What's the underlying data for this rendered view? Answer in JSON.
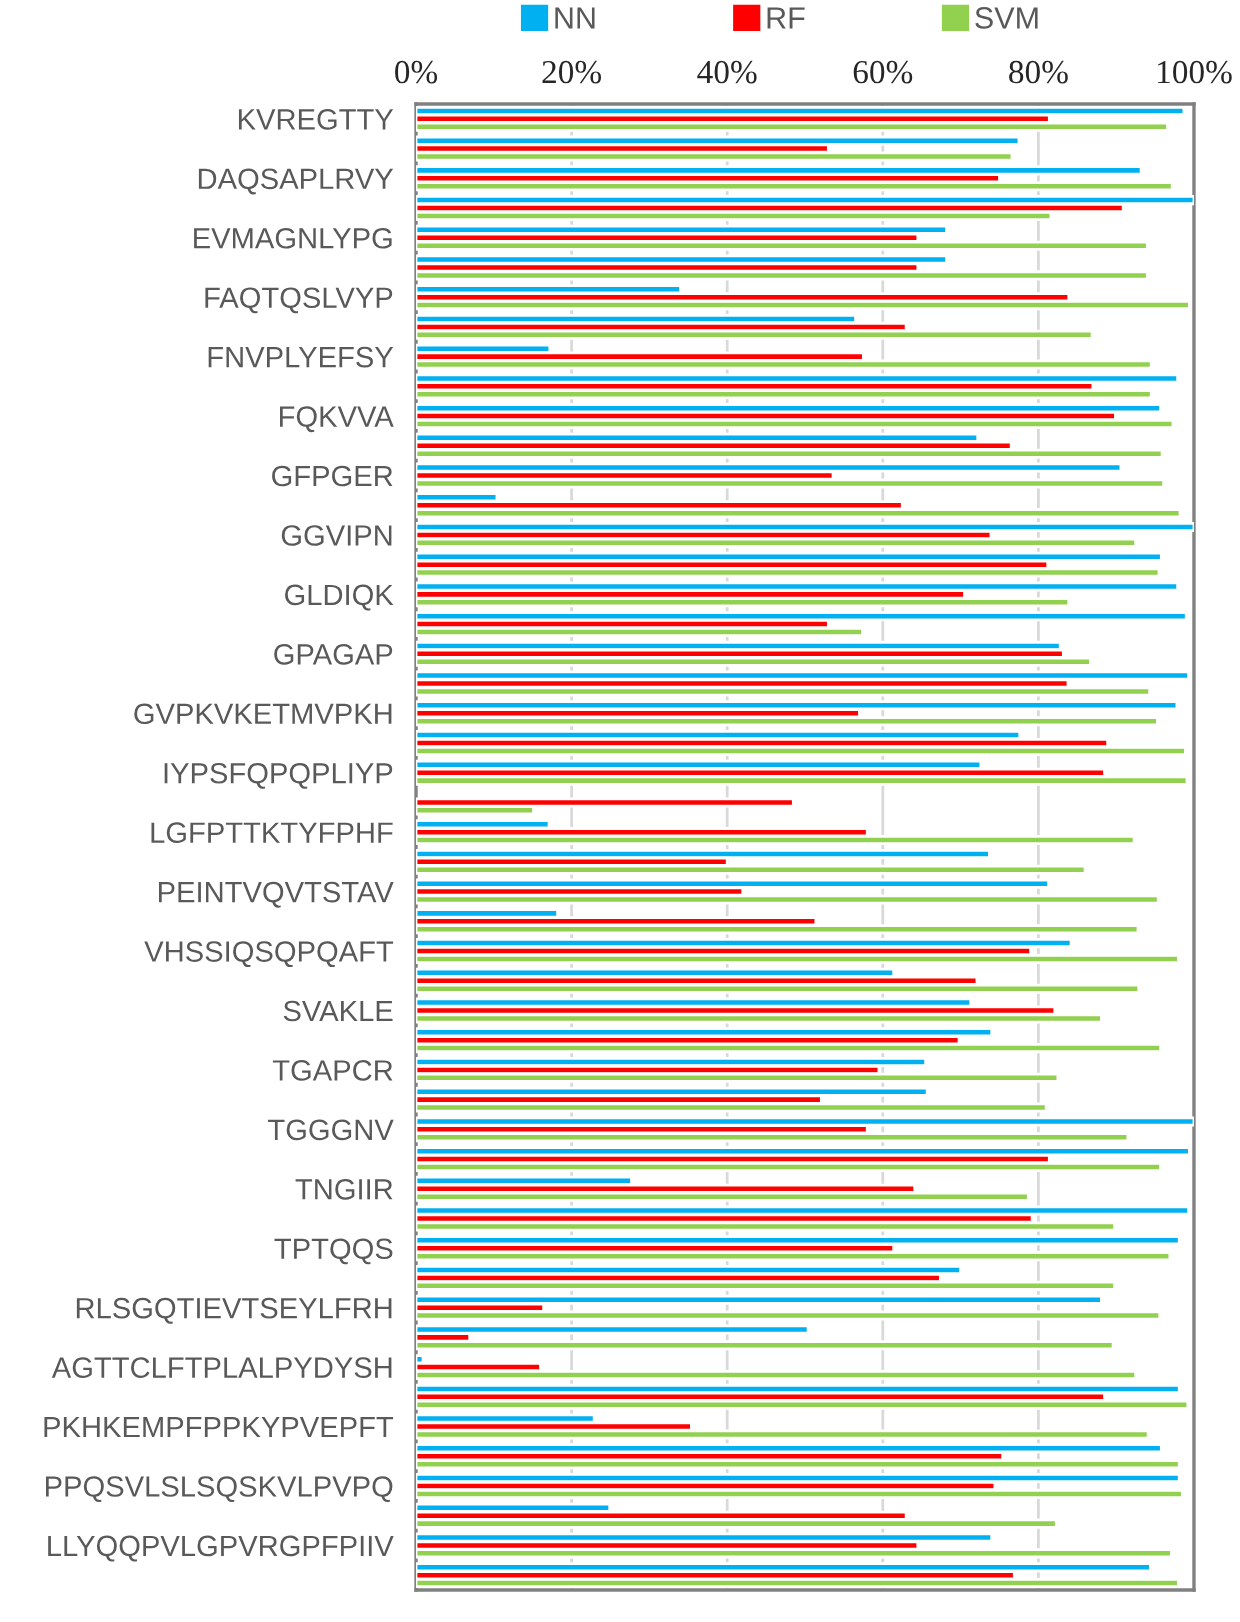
{
  "chart_data": {
    "type": "bar",
    "orientation": "horizontal",
    "categories": [
      "KVREGTTY",
      null,
      "DAQSAPLRVY",
      null,
      "EVMAGNLYPG",
      null,
      "FAQTQSLVYP",
      null,
      "FNVPLYEFSY",
      null,
      "FQKVVA",
      null,
      "GFPGER",
      null,
      "GGVIPN",
      null,
      "GLDIQK",
      null,
      "GPAGAP",
      null,
      "GVPKVKETMVPKH",
      null,
      "IYPSFQPQPLIYP",
      null,
      "LGFPTTKTYFPHF",
      null,
      "PEINTVQVTSTAV",
      null,
      "VHSSIQSQPQAFT",
      null,
      "SVAKLE",
      null,
      "TGAPCR",
      null,
      "TGGGNV",
      null,
      "TNGIIR",
      null,
      "TPTQQS",
      null,
      "RLSGQTIEVTSEYLFRH",
      null,
      "AGTTCLFTPLALPYDYSH",
      null,
      "PKHKEMPFPPKYPVEPFT",
      null,
      "PPQSVLSLSQSKVLPVPQ",
      null,
      "LLYQQPVLGPVRGPFPIIV",
      null
    ],
    "series": [
      {
        "name": "NN",
        "color": "#00b0f0",
        "values": [
          98.7,
          77.5,
          93.2,
          100,
          68.2,
          68.2,
          34,
          56.5,
          17.2,
          97.9,
          95.7,
          72.2,
          90.6,
          10.4,
          100,
          95.8,
          97.9,
          99,
          82.8,
          99.3,
          97.8,
          77.6,
          72.6,
          null,
          17.1,
          73.7,
          81.3,
          18.2,
          84.2,
          61.4,
          71.3,
          74,
          65.5,
          65.7,
          100,
          99.4,
          27.7,
          99.3,
          98.1,
          70,
          88.1,
          50.4,
          0.9,
          98.1,
          22.9,
          95.8,
          98.1,
          24.9,
          74,
          94.4
        ]
      },
      {
        "name": "RF",
        "color": "#ff0000",
        "values": [
          81.4,
          53,
          75,
          90.9,
          64.5,
          64.5,
          83.9,
          63,
          57.5,
          87,
          89.9,
          76.5,
          53.6,
          62.5,
          73.9,
          81.2,
          70.5,
          53,
          83.2,
          83.8,
          57,
          88.9,
          88.5,
          48.5,
          58,
          40,
          42,
          51.4,
          79,
          72.1,
          82.1,
          69.8,
          59.5,
          52.1,
          58,
          81.4,
          64.1,
          79.2,
          61.4,
          67.4,
          16.4,
          6.9,
          16,
          88.5,
          35.4,
          75.4,
          74.4,
          63,
          64.5,
          76.9
        ]
      },
      {
        "name": "SVM",
        "color": "#92d050",
        "values": [
          96.6,
          76.6,
          97.2,
          81.6,
          94,
          94,
          99.4,
          86.9,
          94.5,
          94.5,
          97.3,
          95.9,
          96.1,
          98.2,
          92.5,
          95.5,
          83.9,
          57.4,
          86.7,
          94.3,
          95.3,
          98.9,
          99.1,
          15.1,
          92.3,
          86,
          95.4,
          92.8,
          98,
          92.9,
          88.1,
          95.7,
          82.5,
          81,
          91.5,
          95.7,
          78.7,
          89.8,
          96.9,
          89.8,
          95.6,
          89.6,
          92.5,
          99.2,
          94.1,
          98.1,
          98.5,
          82.3,
          97.1,
          98
        ]
      }
    ],
    "xlim": [
      0,
      100
    ],
    "xticks": [
      {
        "value": 0,
        "label": "0%"
      },
      {
        "value": 20,
        "label": "20%"
      },
      {
        "value": 40,
        "label": "40%"
      },
      {
        "value": 60,
        "label": "60%"
      },
      {
        "value": 80,
        "label": "80%"
      },
      {
        "value": 100,
        "label": "100%"
      }
    ],
    "grid": "x",
    "legend": "top"
  }
}
